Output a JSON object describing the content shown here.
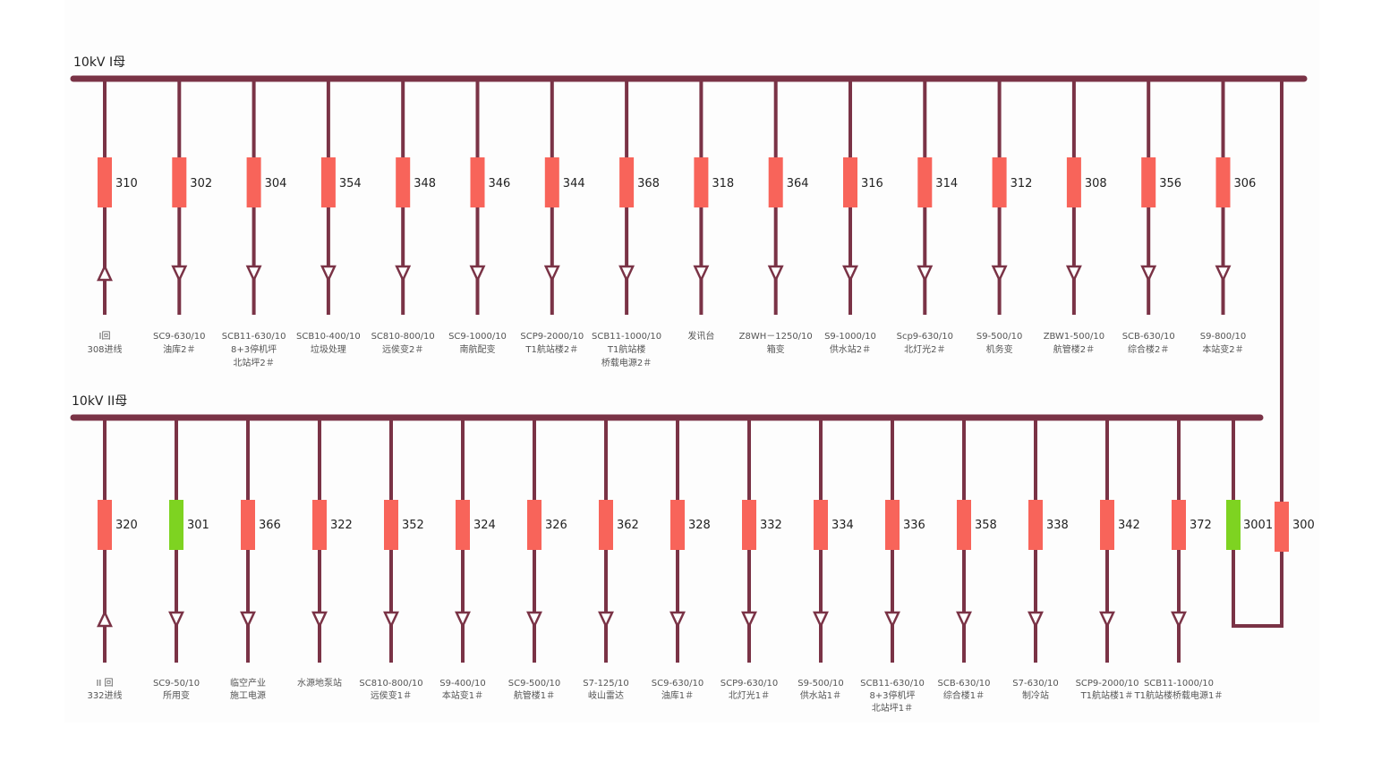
{
  "colors": {
    "line": "#7a3346",
    "breaker_closed": "#f8645a",
    "breaker_open": "#7ed321",
    "label": "#555555",
    "number": "#222222"
  },
  "bus1": {
    "title": "10kV I母",
    "feeders": [
      {
        "num": "310",
        "dir": "in",
        "state": "closed",
        "label": [
          "I回",
          "308进线"
        ]
      },
      {
        "num": "302",
        "dir": "out",
        "state": "closed",
        "label": [
          "SC9-630/10",
          "油库2＃"
        ]
      },
      {
        "num": "304",
        "dir": "out",
        "state": "closed",
        "label": [
          "SCB11-630/10",
          "8+3停机坪",
          "北站坪2＃"
        ]
      },
      {
        "num": "354",
        "dir": "out",
        "state": "closed",
        "label": [
          "SCB10-400/10",
          "垃圾处理"
        ]
      },
      {
        "num": "348",
        "dir": "out",
        "state": "closed",
        "label": [
          "SC810-800/10",
          "远侯变2＃"
        ]
      },
      {
        "num": "346",
        "dir": "out",
        "state": "closed",
        "label": [
          "SC9-1000/10",
          "南航配变"
        ]
      },
      {
        "num": "344",
        "dir": "out",
        "state": "closed",
        "label": [
          "SCP9-2000/10",
          "T1航站楼2＃"
        ]
      },
      {
        "num": "368",
        "dir": "out",
        "state": "closed",
        "label": [
          "SCB11-1000/10",
          "T1航站楼",
          "桥载电源2＃"
        ]
      },
      {
        "num": "318",
        "dir": "out",
        "state": "closed",
        "label": [
          "发讯台"
        ]
      },
      {
        "num": "364",
        "dir": "out",
        "state": "closed",
        "label": [
          "Z8WH－1250/10",
          "箱变"
        ]
      },
      {
        "num": "316",
        "dir": "out",
        "state": "closed",
        "label": [
          "S9-1000/10",
          "供水站2＃"
        ]
      },
      {
        "num": "314",
        "dir": "out",
        "state": "closed",
        "label": [
          "Scp9-630/10",
          "北灯光2＃"
        ]
      },
      {
        "num": "312",
        "dir": "out",
        "state": "closed",
        "label": [
          "S9-500/10",
          "机务变"
        ]
      },
      {
        "num": "308",
        "dir": "out",
        "state": "closed",
        "label": [
          "ZBW1-500/10",
          "航管楼2＃"
        ]
      },
      {
        "num": "356",
        "dir": "out",
        "state": "closed",
        "label": [
          "SCB-630/10",
          "综合楼2＃"
        ]
      },
      {
        "num": "306",
        "dir": "out",
        "state": "closed",
        "label": [
          "S9-800/10",
          "本站变2＃"
        ]
      }
    ]
  },
  "bus2": {
    "title": "10kV II母",
    "feeders": [
      {
        "num": "320",
        "dir": "in",
        "state": "closed",
        "label": [
          "II 回",
          "332进线"
        ]
      },
      {
        "num": "301",
        "dir": "out",
        "state": "open",
        "label": [
          "SC9-50/10",
          "所用变"
        ]
      },
      {
        "num": "366",
        "dir": "out",
        "state": "closed",
        "label": [
          "临空产业",
          "施工电源"
        ]
      },
      {
        "num": "322",
        "dir": "out",
        "state": "closed",
        "label": [
          "水源地泵站"
        ]
      },
      {
        "num": "352",
        "dir": "out",
        "state": "closed",
        "label": [
          "SC810-800/10",
          "远侯变1＃"
        ]
      },
      {
        "num": "324",
        "dir": "out",
        "state": "closed",
        "label": [
          "S9-400/10",
          "本站变1＃"
        ]
      },
      {
        "num": "326",
        "dir": "out",
        "state": "closed",
        "label": [
          "SC9-500/10",
          "航管楼1＃"
        ]
      },
      {
        "num": "362",
        "dir": "out",
        "state": "closed",
        "label": [
          "S7-125/10",
          "岐山雷达"
        ]
      },
      {
        "num": "328",
        "dir": "out",
        "state": "closed",
        "label": [
          "SC9-630/10",
          "油库1＃"
        ]
      },
      {
        "num": "332",
        "dir": "out",
        "state": "closed",
        "label": [
          "SCP9-630/10",
          "北灯光1＃"
        ]
      },
      {
        "num": "334",
        "dir": "out",
        "state": "closed",
        "label": [
          "S9-500/10",
          "供水站1＃"
        ]
      },
      {
        "num": "336",
        "dir": "out",
        "state": "closed",
        "label": [
          "SCB11-630/10",
          "8+3停机坪",
          "北站坪1＃"
        ]
      },
      {
        "num": "358",
        "dir": "out",
        "state": "closed",
        "label": [
          "SCB-630/10",
          "综合楼1＃"
        ]
      },
      {
        "num": "338",
        "dir": "out",
        "state": "closed",
        "label": [
          "S7-630/10",
          "制冷站"
        ]
      },
      {
        "num": "342",
        "dir": "out",
        "state": "closed",
        "label": [
          "SCP9-2000/10",
          "T1航站楼1＃"
        ]
      },
      {
        "num": "372",
        "dir": "out",
        "state": "closed",
        "label": [
          "SCB11-1000/10",
          "T1航站楼桥载电源1＃"
        ]
      }
    ]
  },
  "tie": {
    "breaker_a": {
      "num": "3001",
      "state": "open"
    },
    "breaker_b": {
      "num": "300",
      "state": "closed"
    }
  }
}
